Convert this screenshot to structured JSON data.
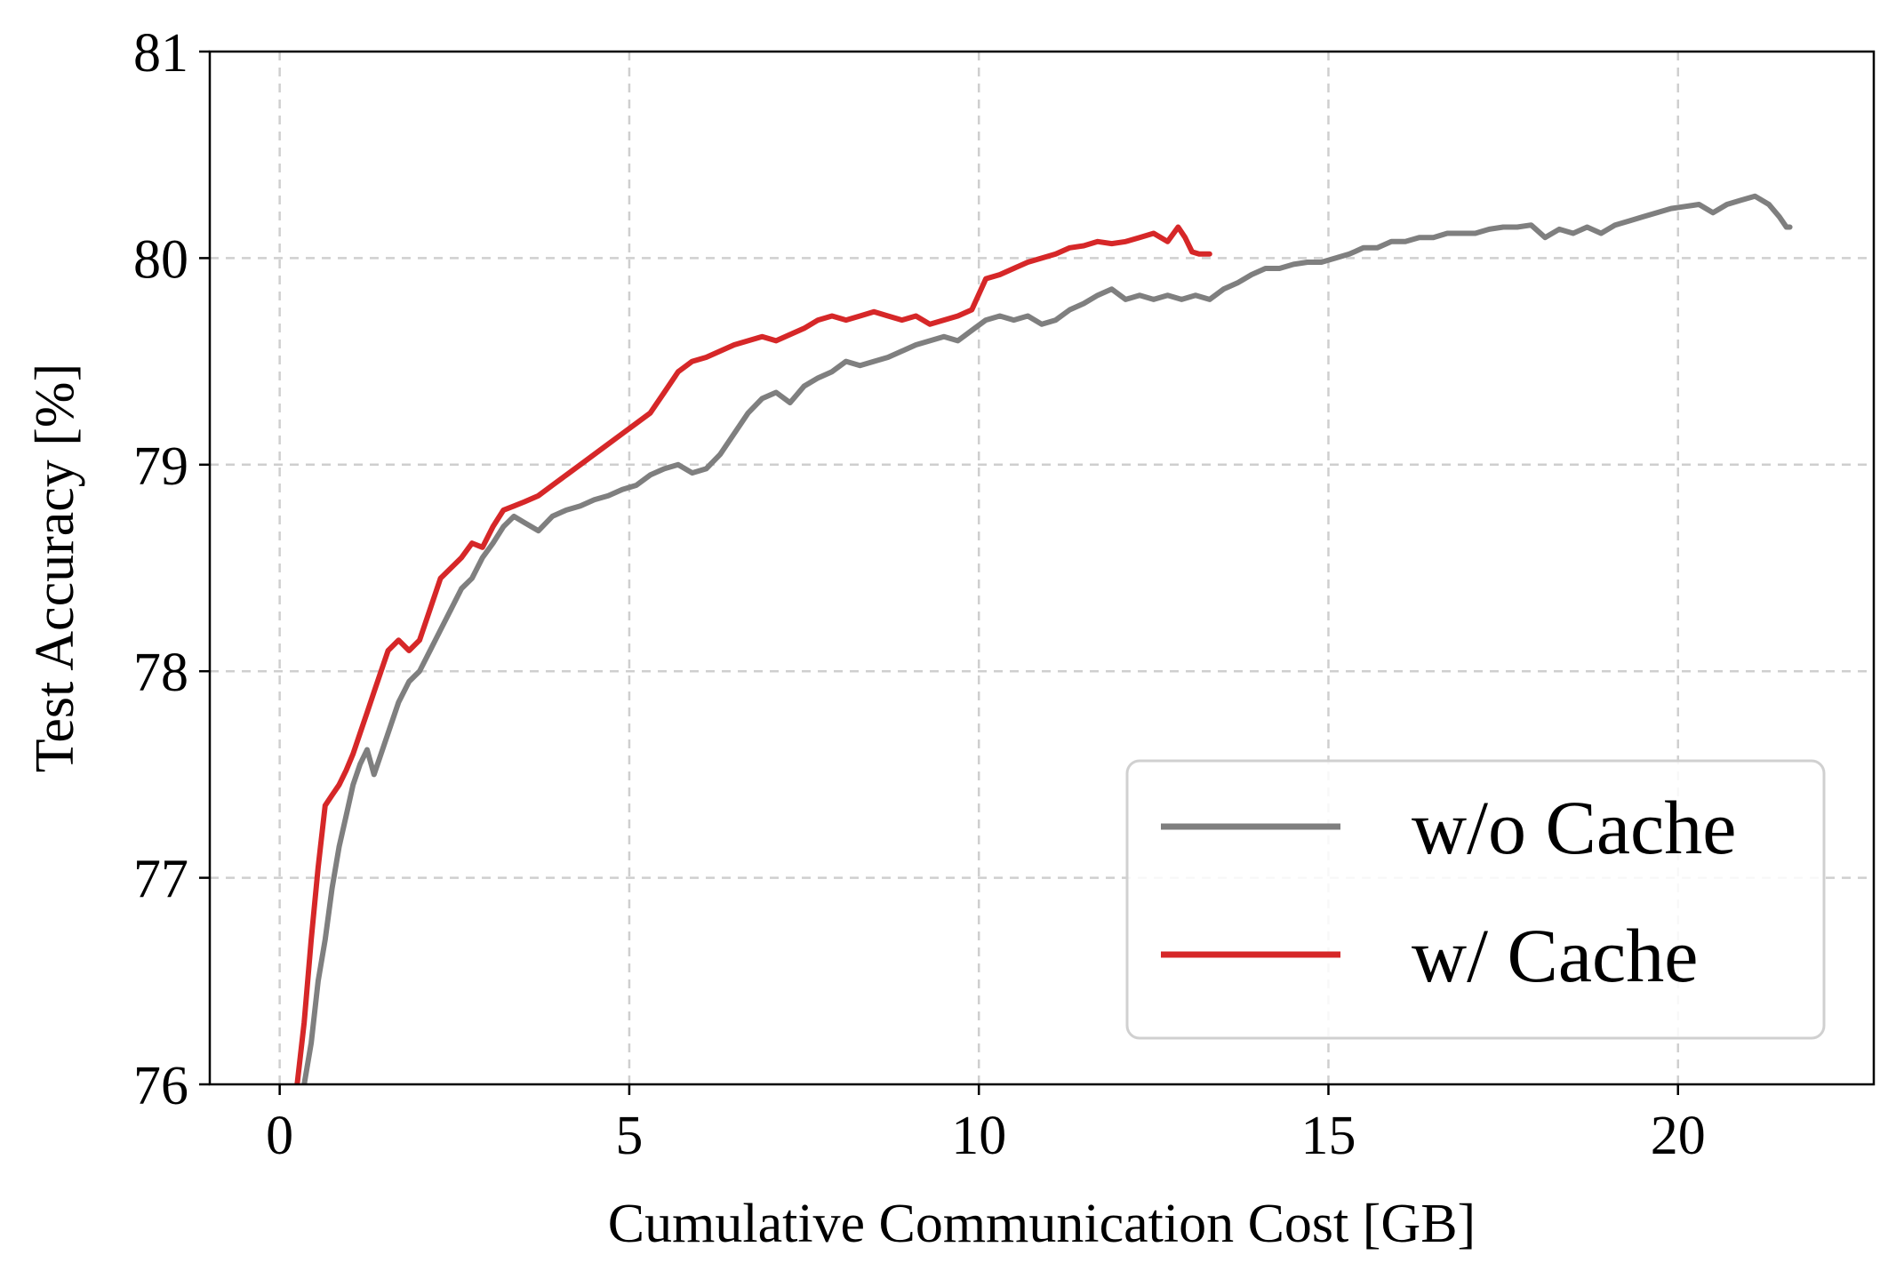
{
  "chart_data": {
    "type": "line",
    "title": "",
    "xlabel": "Cumulative Communication Cost [GB]",
    "ylabel": "Test Accuracy [%]",
    "xlim": [
      -1,
      22.8
    ],
    "ylim": [
      76,
      81
    ],
    "xticks": [
      0,
      5,
      10,
      15,
      20
    ],
    "xtick_labels": [
      "0",
      "5",
      "10",
      "15",
      "20"
    ],
    "yticks": [
      76,
      77,
      78,
      79,
      80,
      81
    ],
    "ytick_labels": [
      "76",
      "77",
      "78",
      "79",
      "80",
      "81"
    ],
    "grid": true,
    "legend_position": "bottom-right",
    "series": [
      {
        "name": "w/o Cache",
        "color": "#7f7f7f",
        "x": [
          0.35,
          0.45,
          0.55,
          0.65,
          0.75,
          0.85,
          0.95,
          1.05,
          1.15,
          1.25,
          1.35,
          1.45,
          1.55,
          1.7,
          1.85,
          2.0,
          2.15,
          2.3,
          2.45,
          2.6,
          2.75,
          2.9,
          3.05,
          3.2,
          3.35,
          3.5,
          3.7,
          3.9,
          4.1,
          4.3,
          4.5,
          4.7,
          4.9,
          5.1,
          5.3,
          5.5,
          5.7,
          5.9,
          6.1,
          6.3,
          6.5,
          6.7,
          6.9,
          7.1,
          7.3,
          7.5,
          7.7,
          7.9,
          8.1,
          8.3,
          8.5,
          8.7,
          8.9,
          9.1,
          9.3,
          9.5,
          9.7,
          9.9,
          10.1,
          10.3,
          10.5,
          10.7,
          10.9,
          11.1,
          11.3,
          11.5,
          11.7,
          11.9,
          12.1,
          12.3,
          12.5,
          12.7,
          12.9,
          13.1,
          13.3,
          13.5,
          13.7,
          13.9,
          14.1,
          14.3,
          14.5,
          14.7,
          14.9,
          15.1,
          15.3,
          15.5,
          15.7,
          15.9,
          16.1,
          16.3,
          16.5,
          16.7,
          16.9,
          17.1,
          17.3,
          17.5,
          17.7,
          17.9,
          18.1,
          18.3,
          18.5,
          18.7,
          18.9,
          19.1,
          19.3,
          19.5,
          19.7,
          19.9,
          20.1,
          20.3,
          20.5,
          20.7,
          20.9,
          21.1,
          21.3,
          21.45,
          21.55,
          21.6
        ],
        "y": [
          76.0,
          76.2,
          76.5,
          76.7,
          76.95,
          77.15,
          77.3,
          77.45,
          77.55,
          77.62,
          77.5,
          77.6,
          77.7,
          77.85,
          77.95,
          78.0,
          78.1,
          78.2,
          78.3,
          78.4,
          78.45,
          78.55,
          78.62,
          78.7,
          78.75,
          78.72,
          78.68,
          78.75,
          78.78,
          78.8,
          78.83,
          78.85,
          78.88,
          78.9,
          78.95,
          78.98,
          79.0,
          78.96,
          78.98,
          79.05,
          79.15,
          79.25,
          79.32,
          79.35,
          79.3,
          79.38,
          79.42,
          79.45,
          79.5,
          79.48,
          79.5,
          79.52,
          79.55,
          79.58,
          79.6,
          79.62,
          79.6,
          79.65,
          79.7,
          79.72,
          79.7,
          79.72,
          79.68,
          79.7,
          79.75,
          79.78,
          79.82,
          79.85,
          79.8,
          79.82,
          79.8,
          79.82,
          79.8,
          79.82,
          79.8,
          79.85,
          79.88,
          79.92,
          79.95,
          79.95,
          79.97,
          79.98,
          79.98,
          80.0,
          80.02,
          80.05,
          80.05,
          80.08,
          80.08,
          80.1,
          80.1,
          80.12,
          80.12,
          80.12,
          80.14,
          80.15,
          80.15,
          80.16,
          80.1,
          80.14,
          80.12,
          80.15,
          80.12,
          80.16,
          80.18,
          80.2,
          80.22,
          80.24,
          80.25,
          80.26,
          80.22,
          80.26,
          80.28,
          80.3,
          80.26,
          80.2,
          80.15,
          80.15
        ]
      },
      {
        "name": "w/ Cache",
        "color": "#d62728",
        "x": [
          0.25,
          0.35,
          0.45,
          0.55,
          0.65,
          0.75,
          0.85,
          0.95,
          1.05,
          1.15,
          1.25,
          1.35,
          1.45,
          1.55,
          1.7,
          1.85,
          2.0,
          2.15,
          2.3,
          2.45,
          2.6,
          2.75,
          2.9,
          3.05,
          3.2,
          3.35,
          3.5,
          3.7,
          3.9,
          4.1,
          4.3,
          4.5,
          4.7,
          4.9,
          5.1,
          5.3,
          5.5,
          5.7,
          5.9,
          6.1,
          6.3,
          6.5,
          6.7,
          6.9,
          7.1,
          7.3,
          7.5,
          7.7,
          7.9,
          8.1,
          8.3,
          8.5,
          8.7,
          8.9,
          9.1,
          9.3,
          9.5,
          9.7,
          9.9,
          10.1,
          10.3,
          10.5,
          10.7,
          10.9,
          11.1,
          11.3,
          11.5,
          11.7,
          11.9,
          12.1,
          12.3,
          12.5,
          12.7,
          12.85,
          12.95,
          13.05,
          13.15,
          13.3
        ],
        "y": [
          76.0,
          76.3,
          76.7,
          77.05,
          77.35,
          77.4,
          77.45,
          77.52,
          77.6,
          77.7,
          77.8,
          77.9,
          78.0,
          78.1,
          78.15,
          78.1,
          78.15,
          78.3,
          78.45,
          78.5,
          78.55,
          78.62,
          78.6,
          78.7,
          78.78,
          78.8,
          78.82,
          78.85,
          78.9,
          78.95,
          79.0,
          79.05,
          79.1,
          79.15,
          79.2,
          79.25,
          79.35,
          79.45,
          79.5,
          79.52,
          79.55,
          79.58,
          79.6,
          79.62,
          79.6,
          79.63,
          79.66,
          79.7,
          79.72,
          79.7,
          79.72,
          79.74,
          79.72,
          79.7,
          79.72,
          79.68,
          79.7,
          79.72,
          79.75,
          79.9,
          79.92,
          79.95,
          79.98,
          80.0,
          80.02,
          80.05,
          80.06,
          80.08,
          80.07,
          80.08,
          80.1,
          80.12,
          80.08,
          80.15,
          80.1,
          80.03,
          80.02,
          80.02
        ]
      }
    ]
  }
}
